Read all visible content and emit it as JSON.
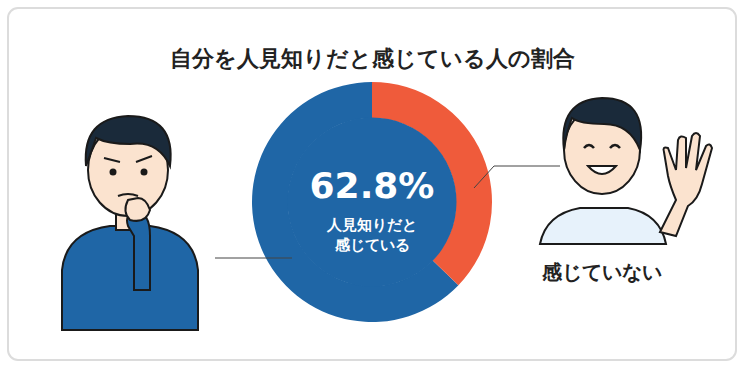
{
  "chart_data": {
    "type": "pie",
    "title": "自分を人見知りだと感じている人の割合",
    "categories": [
      "人見知りだと\n感じている",
      "感じていない"
    ],
    "values": [
      62.8,
      37.2
    ],
    "value_labels": [
      "62.8%",
      null
    ],
    "colors": [
      "#1f66a6",
      "#ef5b3b"
    ]
  }
}
